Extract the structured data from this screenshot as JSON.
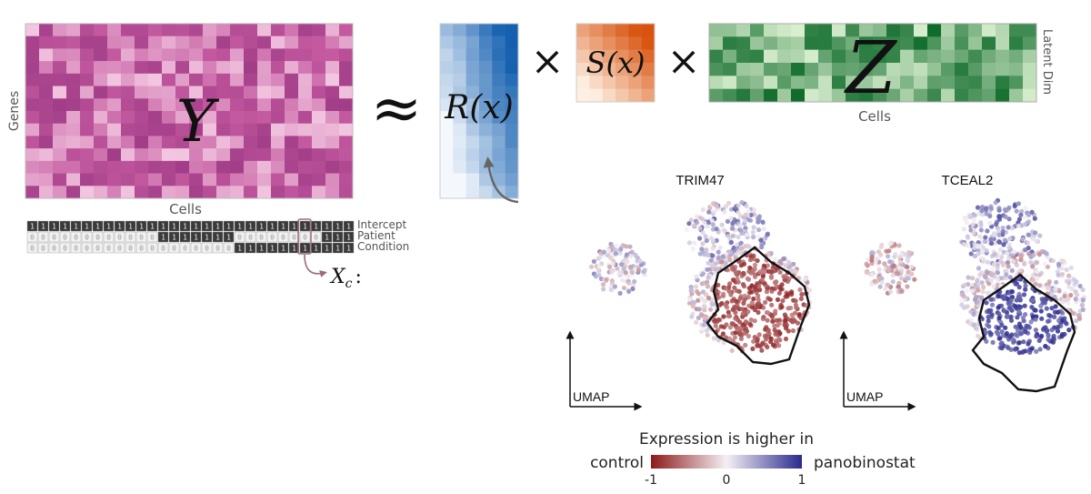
{
  "matrix_Y": {
    "symbol": "Y",
    "row_axis_label": "Genes",
    "col_axis_label": "Cells",
    "color": "#c55aa0"
  },
  "approx_symbol": "≈",
  "matrix_R": {
    "symbol": "R(x)",
    "color": "#2070c0"
  },
  "times_symbol": "×",
  "matrix_S": {
    "symbol": "S(x)",
    "color": "#e0661a"
  },
  "matrix_Z": {
    "symbol": "Z",
    "row_axis_label": "Latent Dim",
    "col_axis_label": "Cells",
    "color": "#2e8b3e"
  },
  "design_matrix": {
    "row_labels": [
      "Intercept",
      "Patient",
      "Condition"
    ],
    "rows": [
      [
        "1",
        "1",
        "1",
        "1",
        "1",
        "1",
        "1",
        "1",
        "1",
        "1",
        "1",
        "1",
        "1",
        "1",
        "1",
        "1",
        "1",
        "1",
        "1",
        "1",
        "1",
        "1",
        "1",
        "1",
        "1",
        "1",
        "1",
        "1",
        "1",
        "1"
      ],
      [
        "0",
        "0",
        "0",
        "0",
        "0",
        "0",
        "0",
        "0",
        "0",
        "0",
        "0",
        "0",
        "1",
        "1",
        "1",
        "1",
        "1",
        "1",
        "1",
        "0",
        "0",
        "0",
        "0",
        "0",
        "0",
        "0",
        "0",
        "1",
        "1",
        "1"
      ],
      [
        "0",
        "0",
        "0",
        "0",
        "0",
        "0",
        "0",
        "0",
        "0",
        "0",
        "0",
        "0",
        "0",
        "0",
        "0",
        "0",
        "0",
        "0",
        "0",
        "1",
        "1",
        "1",
        "1",
        "1",
        "1",
        "1",
        "1",
        "1",
        "1",
        "1"
      ]
    ],
    "highlight_column": 24,
    "callout_symbol": "X",
    "callout_subscript": "c",
    "callout_suffix": ":"
  },
  "umap_panels": [
    {
      "gene": "TRIM47",
      "axis_label": "UMAP",
      "direction": "higher in panobinostat region: red"
    },
    {
      "gene": "TCEAL2",
      "axis_label": "UMAP",
      "direction": "higher in panobinostat region: blue"
    }
  ],
  "colorbar": {
    "title": "Expression is higher in",
    "left_label": "control",
    "right_label": "panobinostat",
    "tick_labels": [
      "-1",
      "0",
      "1"
    ],
    "min": -1,
    "max": 1,
    "low_color": "#8b1a1a",
    "mid_color": "#f5f0f5",
    "high_color": "#2a2a8c"
  }
}
